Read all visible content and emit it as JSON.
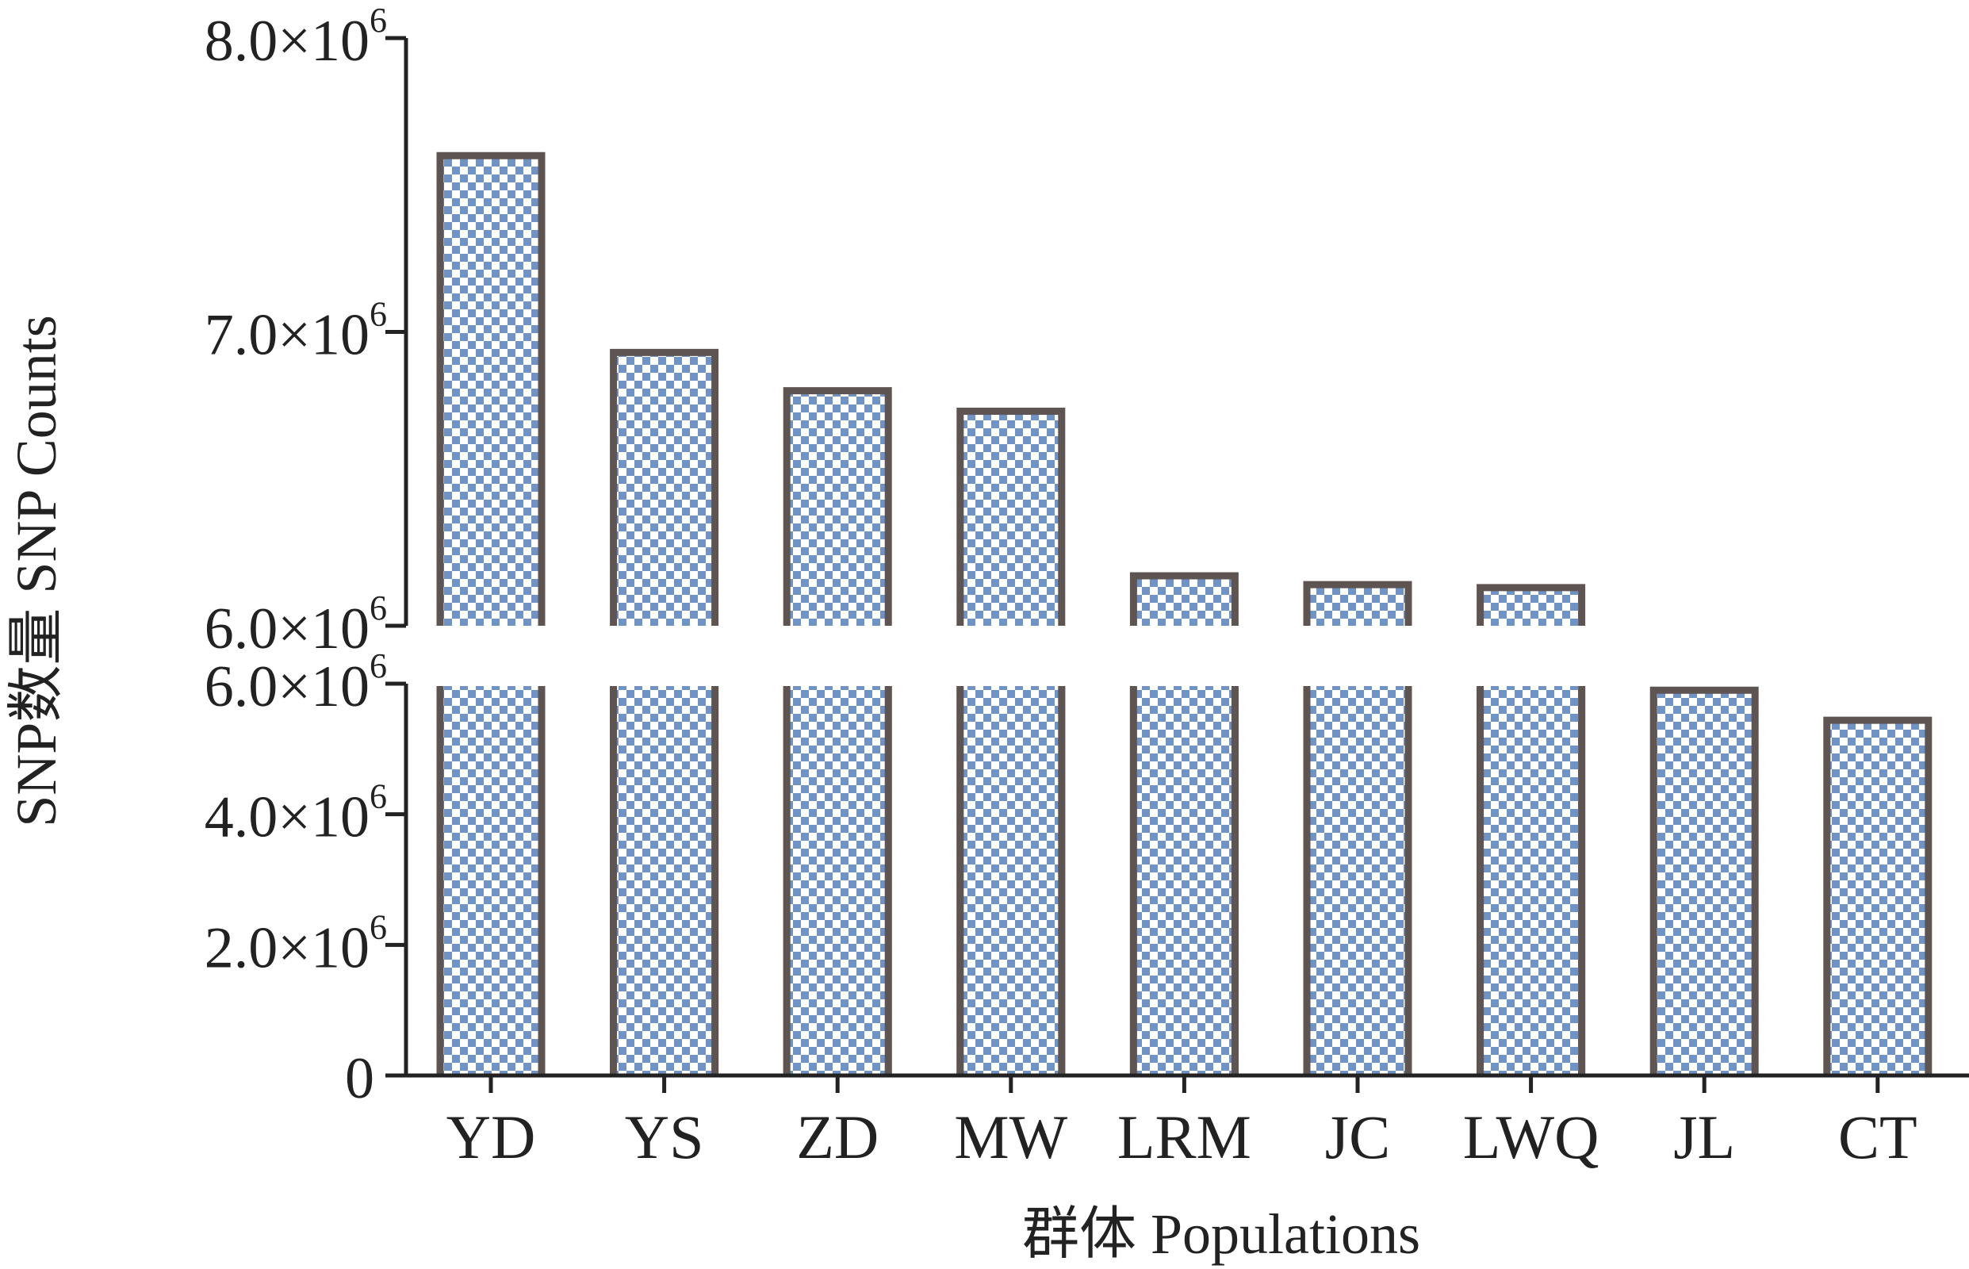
{
  "chart_data": {
    "type": "bar",
    "title": "",
    "xlabel": "群体 Populations",
    "ylabel": "SNP数量 SNP Counts",
    "categories": [
      "YD",
      "YS",
      "ZD",
      "MW",
      "LRM",
      "JC",
      "LWQ",
      "JL",
      "CT"
    ],
    "values": [
      7600000,
      6930000,
      6800000,
      6730000,
      6170000,
      6140000,
      6130000,
      5900000,
      5440000
    ],
    "axis_break": true,
    "upper_ylim": [
      6000000,
      8000000
    ],
    "lower_ylim": [
      0,
      6000000
    ],
    "upper_ticks": [
      {
        "value": 6000000,
        "label": "6.0×10",
        "exp": "6"
      },
      {
        "value": 7000000,
        "label": "7.0×10",
        "exp": "6"
      },
      {
        "value": 8000000,
        "label": "8.0×10",
        "exp": "6"
      }
    ],
    "lower_ticks": [
      {
        "value": 0,
        "label": "0",
        "exp": ""
      },
      {
        "value": 2000000,
        "label": "2.0×10",
        "exp": "6"
      },
      {
        "value": 4000000,
        "label": "4.0×10",
        "exp": "6"
      },
      {
        "value": 6000000,
        "label": "6.0×10",
        "exp": "6"
      }
    ],
    "bar_fill": "#6f93c4",
    "bar_border": "#5e5552",
    "grid": false,
    "legend": "none"
  }
}
